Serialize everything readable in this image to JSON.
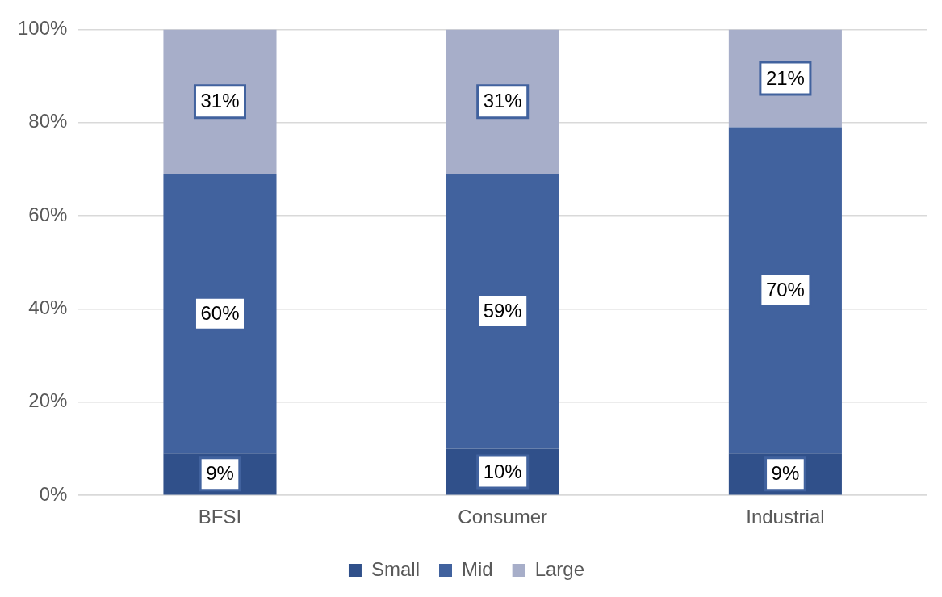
{
  "chart_data": {
    "type": "bar",
    "stacked": true,
    "categories": [
      "BFSI",
      "Consumer",
      "Industrial"
    ],
    "series": [
      {
        "name": "Small",
        "color": "#30508a",
        "values": [
          9,
          10,
          9
        ],
        "value_labels": [
          "9%",
          "10%",
          "9%"
        ]
      },
      {
        "name": "Mid",
        "color": "#41629e",
        "values": [
          60,
          59,
          70
        ],
        "value_labels": [
          "60%",
          "59%",
          "70%"
        ]
      },
      {
        "name": "Large",
        "color": "#a7aec9",
        "values": [
          31,
          31,
          21
        ],
        "value_labels": [
          "31%",
          "31%",
          "21%"
        ]
      }
    ],
    "ylim": [
      0,
      100
    ],
    "yticks": [
      {
        "value": 0,
        "label": "0%"
      },
      {
        "value": 20,
        "label": "20%"
      },
      {
        "value": 40,
        "label": "40%"
      },
      {
        "value": 60,
        "label": "60%"
      },
      {
        "value": 80,
        "label": "80%"
      },
      {
        "value": 100,
        "label": "100%"
      }
    ],
    "grid": "y",
    "legend": "bottom"
  }
}
